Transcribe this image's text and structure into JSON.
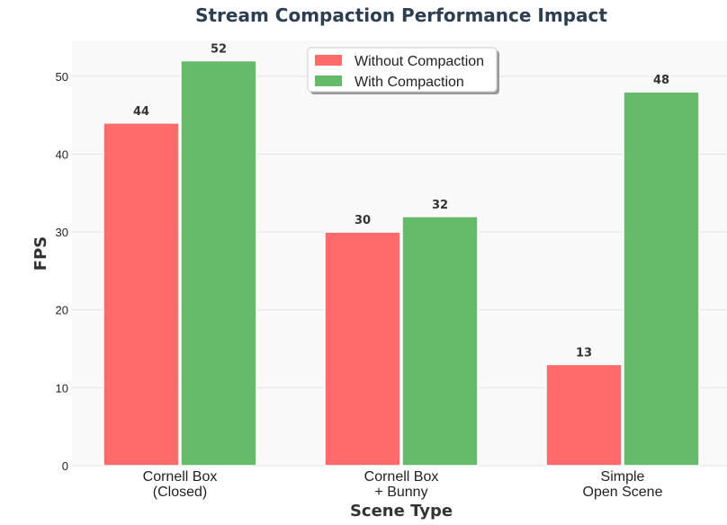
{
  "chart_data": {
    "type": "bar",
    "title": "Stream Compaction Performance Impact",
    "xlabel": "Scene Type",
    "ylabel": "FPS",
    "categories": [
      [
        "Cornell Box",
        "(Closed)"
      ],
      [
        "Cornell Box",
        "+ Bunny"
      ],
      [
        "Simple",
        "Open Scene"
      ]
    ],
    "series": [
      {
        "name": "Without Compaction",
        "values": [
          44,
          30,
          13
        ],
        "color": "#ff6b6b"
      },
      {
        "name": "With Compaction",
        "values": [
          52,
          32,
          48
        ],
        "color": "#66bb6a"
      }
    ],
    "ylim": [
      0,
      54.6
    ],
    "yticks": [
      0,
      10,
      20,
      30,
      40,
      50
    ],
    "grid": true,
    "legend_position": "top-center"
  }
}
